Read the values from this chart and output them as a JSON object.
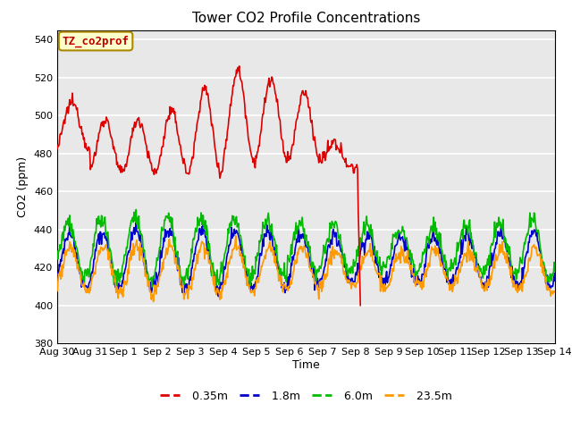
{
  "title": "Tower CO2 Profile Concentrations",
  "xlabel": "Time",
  "ylabel": "CO2 (ppm)",
  "ylim": [
    380,
    545
  ],
  "yticks": [
    380,
    400,
    420,
    440,
    460,
    480,
    500,
    520,
    540
  ],
  "annotation_text": "TZ_co2prof",
  "annotation_color": "#bb0000",
  "annotation_bg": "#ffffcc",
  "annotation_border": "#aa8800",
  "bg_color": "#e8e8e8",
  "line_colors": {
    "0.35m": "#dd0000",
    "1.8m": "#0000cc",
    "6.0m": "#00bb00",
    "23.5m": "#ff9900"
  },
  "line_width": 1.2,
  "xtick_labels": [
    "Aug 30",
    "Aug 31",
    "Sep 1",
    "Sep 2",
    "Sep 3",
    "Sep 4",
    "Sep 5",
    "Sep 6",
    "Sep 7",
    "Sep 8",
    "Sep 9",
    "Sep 10",
    "Sep 11",
    "Sep 12",
    "Sep 13",
    "Sep 14"
  ],
  "xtick_positions": [
    0,
    1,
    2,
    3,
    4,
    5,
    6,
    7,
    8,
    9,
    10,
    11,
    12,
    13,
    14,
    15
  ]
}
